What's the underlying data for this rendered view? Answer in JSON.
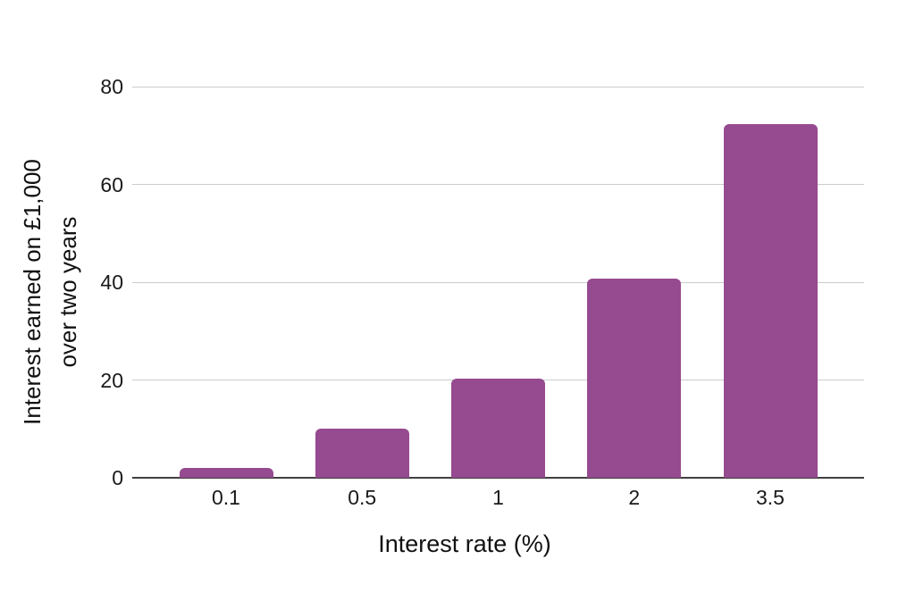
{
  "chart_data": {
    "type": "bar",
    "title": "",
    "categories": [
      "0.1",
      "0.5",
      "1",
      "2",
      "3.5"
    ],
    "values": [
      2,
      10,
      20.2,
      40.8,
      72.3
    ],
    "xlabel": "Interest rate (%)",
    "ylabel": "Interest earned on £1,000 over two years",
    "ylabel_lines": [
      "Interest earned on £1,000",
      "over two years"
    ],
    "yticks": [
      0,
      20,
      40,
      60,
      80
    ],
    "ylim": [
      0,
      80
    ],
    "grid": true,
    "legend": "none",
    "colors": {
      "bar": "#964a8f",
      "gridline": "#cccccc",
      "axis_line": "#404040",
      "tick_label": "#1a1a1a",
      "title_text": "#111111",
      "background": "#ffffff"
    }
  }
}
